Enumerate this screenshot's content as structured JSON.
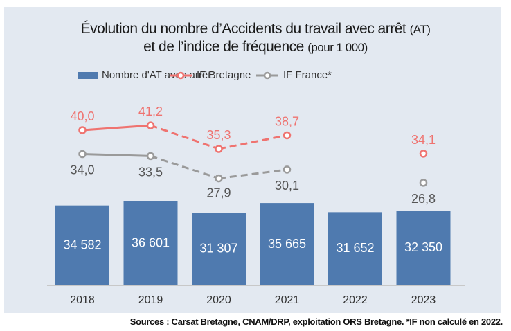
{
  "title": {
    "line1": "Évolution du nombre d’Accidents du travail avec arrêt",
    "line1_suffix": "(AT)",
    "line2": "et de l’indice de fréquence",
    "line2_suffix": "(pour 1 000)"
  },
  "source": "Sources : Carsat Bretagne, CNAM/DRP, exploitation ORS Bretagne.   *IF non calculé en 2022.",
  "chart_data": {
    "type": "bar+line",
    "categories": [
      "2018",
      "2019",
      "2020",
      "2021",
      "2022",
      "2023"
    ],
    "series": [
      {
        "name": "Nombre d'AT avec arrêt",
        "type": "bar",
        "color": "#4f7aaf",
        "values": [
          34582,
          36601,
          31307,
          35665,
          31652,
          32350
        ],
        "labels": [
          "34 582",
          "36 601",
          "31 307",
          "35 665",
          "31 652",
          "32 350"
        ]
      },
      {
        "name": "IF Bretagne",
        "type": "line",
        "color": "#ef7370",
        "values": [
          40.0,
          41.2,
          35.3,
          38.7,
          null,
          34.1
        ],
        "labels": [
          "40,0",
          "41,2",
          "35,3",
          "38,7",
          "",
          "34,1"
        ]
      },
      {
        "name": "IF France*",
        "type": "line",
        "color": "#9a9a9a",
        "values": [
          34.0,
          33.5,
          27.9,
          30.1,
          null,
          26.8
        ],
        "labels": [
          "34,0",
          "33,5",
          "27,9",
          "30,1",
          "",
          "26,8"
        ]
      }
    ],
    "line_styles": "solid 2018–2019, dashed 2019–2021, 2023 point only",
    "legend_position": "top"
  }
}
